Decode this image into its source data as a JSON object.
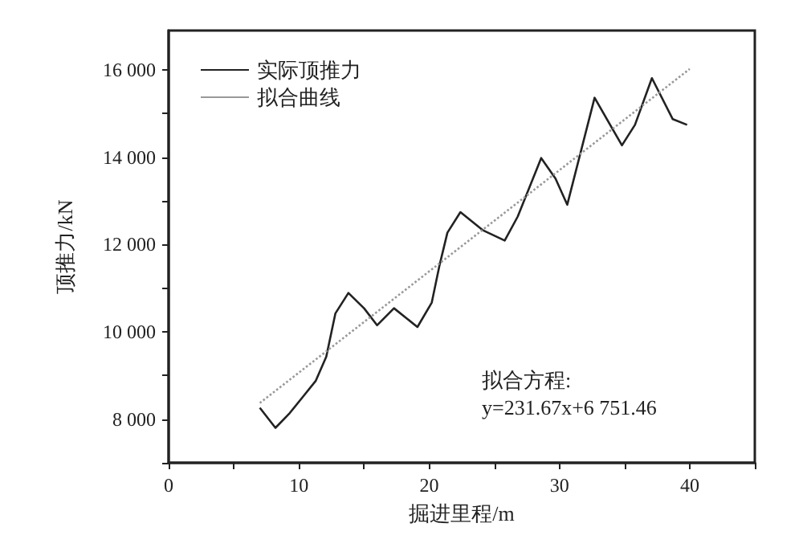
{
  "chart_data": {
    "type": "line",
    "xlabel": "掘进里程/m",
    "ylabel": "顶推力/kN",
    "xlim": [
      0,
      45
    ],
    "xticks": [
      0,
      {
        "value": 5,
        "label": null
      },
      10,
      {
        "value": 15,
        "label": null
      },
      20,
      {
        "value": 25,
        "label": null
      },
      30,
      {
        "value": 35,
        "label": null
      },
      40,
      {
        "value": 45,
        "label": null
      }
    ],
    "ylim": [
      7000,
      16900
    ],
    "yticks": [
      {
        "value": 7000,
        "label": null
      },
      {
        "value": 8000,
        "label": "8 000"
      },
      {
        "value": 9000,
        "label": null
      },
      {
        "value": 10000,
        "label": "10 000"
      },
      {
        "value": 11000,
        "label": null
      },
      {
        "value": 12000,
        "label": "12 000"
      },
      {
        "value": 13000,
        "label": null
      },
      {
        "value": 14000,
        "label": "14 000"
      },
      {
        "value": 15000,
        "label": null
      },
      {
        "value": 16000,
        "label": "16 000"
      }
    ],
    "series": [
      {
        "name": "实际顶推力",
        "color": "#222222",
        "line_style": "solid",
        "x": [
          7.0,
          8.2,
          9.3,
          10.3,
          11.3,
          12.1,
          12.8,
          13.8,
          15.0,
          16.0,
          17.3,
          19.1,
          20.2,
          20.8,
          21.4,
          22.4,
          24.1,
          25.8,
          26.8,
          28.6,
          29.7,
          30.6,
          32.7,
          34.8,
          35.8,
          37.1,
          38.7,
          39.8
        ],
        "values": [
          8260,
          7800,
          8140,
          8510,
          8880,
          9430,
          10420,
          10890,
          10540,
          10150,
          10540,
          10110,
          10670,
          11530,
          12270,
          12740,
          12330,
          12090,
          12640,
          13980,
          13510,
          12910,
          15360,
          14270,
          14740,
          15810,
          14870,
          14740
        ]
      },
      {
        "name": "拟合曲线",
        "color": "#999999",
        "line_style": "dotted",
        "x": [
          7,
          40
        ],
        "values": [
          8370,
          16020
        ]
      }
    ],
    "legend": "top left",
    "grid": false,
    "marker": "none",
    "annotations": [
      "拟合方程:",
      "y=231.67x+6 751.46"
    ]
  }
}
